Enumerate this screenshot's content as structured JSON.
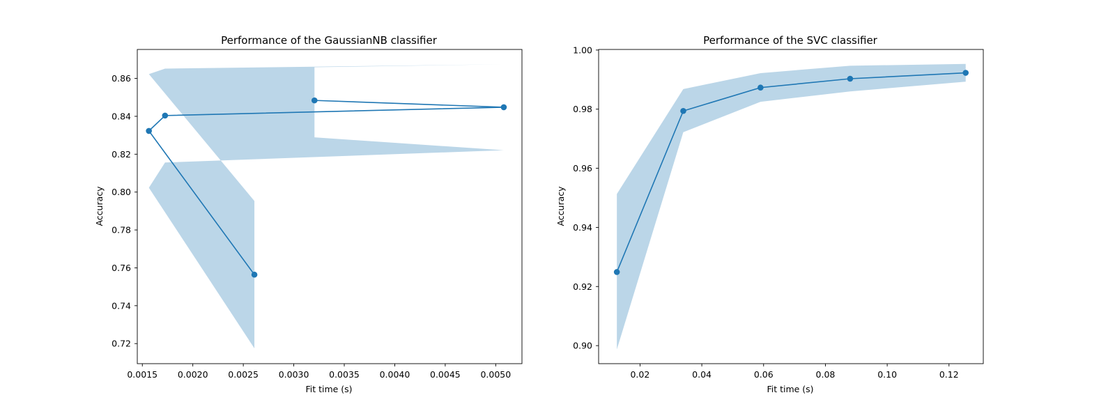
{
  "colors": {
    "line": "#1f77b4",
    "band": "#1f77b4",
    "axes": "#000000",
    "background": "#ffffff"
  },
  "chart_data": [
    {
      "type": "line",
      "title": "Performance of the GaussianNB classifier",
      "xlabel": "Fit time (s)",
      "ylabel": "Accuracy",
      "xlim": [
        0.00145,
        0.00526
      ],
      "ylim": [
        0.7094,
        0.8753
      ],
      "xticks": [
        0.0015,
        0.002,
        0.0025,
        0.003,
        0.0035,
        0.004,
        0.0045,
        0.005
      ],
      "xtick_labels": [
        "0.0015",
        "0.0020",
        "0.0025",
        "0.0030",
        "0.0035",
        "0.0040",
        "0.0045",
        "0.0050"
      ],
      "yticks": [
        0.72,
        0.74,
        0.76,
        0.78,
        0.8,
        0.82,
        0.84,
        0.86
      ],
      "ytick_labels": [
        "0.72",
        "0.74",
        "0.76",
        "0.78",
        "0.80",
        "0.82",
        "0.84",
        "0.86"
      ],
      "grid": false,
      "series": [
        {
          "x": [
            0.00261,
            0.001565,
            0.001725,
            0.00508,
            0.003205
          ],
          "y": [
            0.7564,
            0.8323,
            0.8404,
            0.8448,
            0.8484
          ],
          "y_upper": [
            0.7953,
            0.8623,
            0.8652,
            0.8675,
            0.8659
          ],
          "y_lower": [
            0.7175,
            0.8023,
            0.8156,
            0.8221,
            0.8289
          ]
        }
      ]
    },
    {
      "type": "line",
      "title": "Performance of the SVC classifier",
      "xlabel": "Fit time (s)",
      "ylabel": "Accuracy",
      "xlim": [
        0.0066,
        0.1311
      ],
      "ylim": [
        0.8939,
        1.0002
      ],
      "xticks": [
        0.02,
        0.04,
        0.06,
        0.08,
        0.1,
        0.12
      ],
      "xtick_labels": [
        "0.02",
        "0.04",
        "0.06",
        "0.08",
        "0.10",
        "0.12"
      ],
      "yticks": [
        0.9,
        0.92,
        0.94,
        0.96,
        0.98,
        1.0
      ],
      "ytick_labels": [
        "0.90",
        "0.92",
        "0.94",
        "0.96",
        "0.98",
        "1.00"
      ],
      "grid": false,
      "series": [
        {
          "x": [
            0.0125,
            0.034,
            0.059,
            0.088,
            0.1254
          ],
          "y": [
            0.9249,
            0.9794,
            0.9873,
            0.9903,
            0.9923
          ],
          "y_upper": [
            0.9513,
            0.9868,
            0.9922,
            0.9947,
            0.9953
          ],
          "y_lower": [
            0.8987,
            0.9722,
            0.9825,
            0.986,
            0.9893
          ]
        }
      ]
    }
  ]
}
